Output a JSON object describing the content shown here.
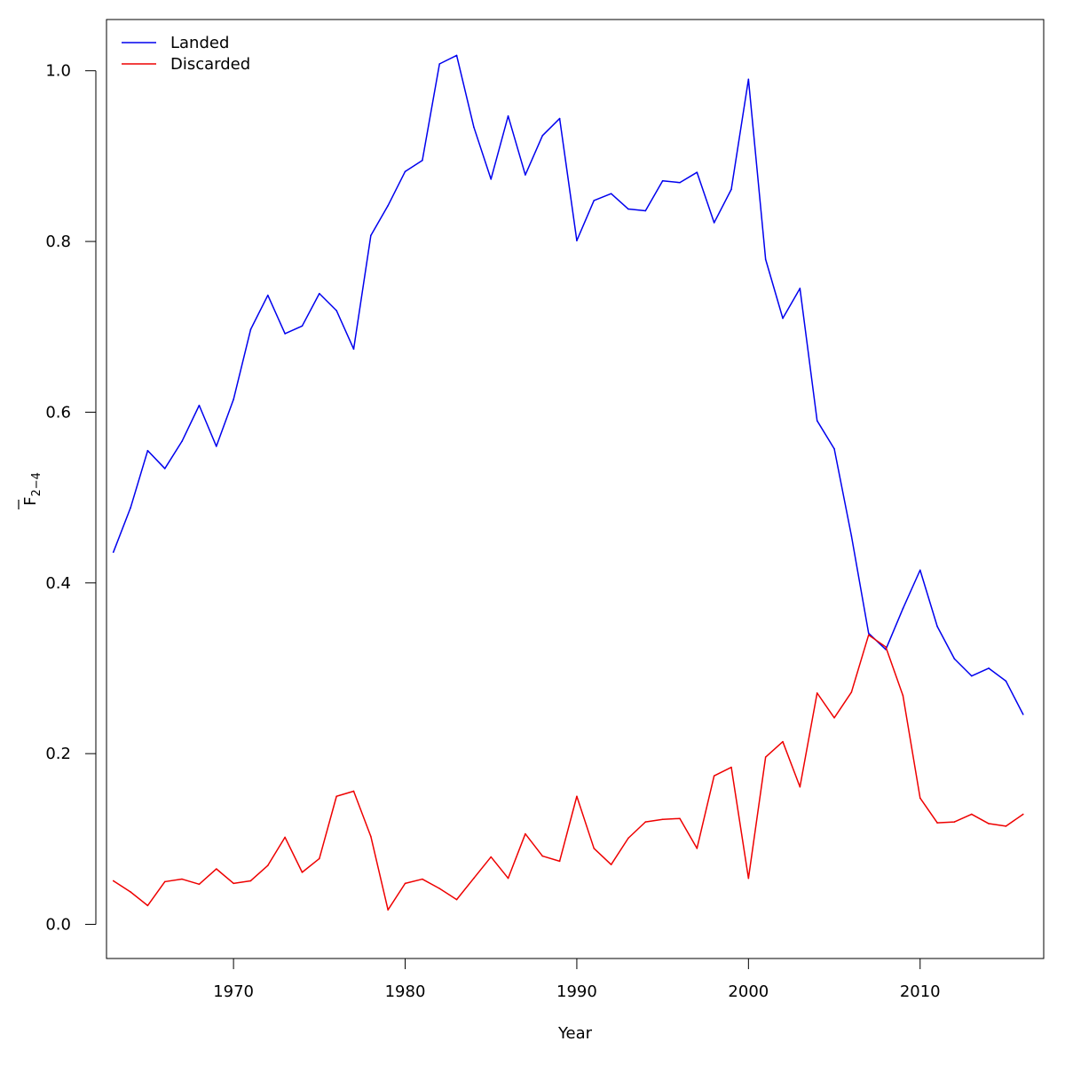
{
  "chart_data": {
    "type": "line",
    "xlabel": "Year",
    "ylabel": "F",
    "ylabel_sub": "2−4",
    "xlim": [
      1962.6,
      2017.2
    ],
    "ylim": [
      -0.04,
      1.06
    ],
    "x_ticks": [
      1970,
      1980,
      1990,
      2000,
      2010
    ],
    "y_ticks": [
      0.0,
      0.2,
      0.4,
      0.6,
      0.8,
      1.0
    ],
    "x_tick_labels": [
      "1970",
      "1980",
      "1990",
      "2000",
      "2010"
    ],
    "y_tick_labels": [
      "0.0",
      "0.2",
      "0.4",
      "0.6",
      "0.8",
      "1.0"
    ],
    "grid": false,
    "legend_position": "top-left",
    "x": [
      1963,
      1964,
      1965,
      1966,
      1967,
      1968,
      1969,
      1970,
      1971,
      1972,
      1973,
      1974,
      1975,
      1976,
      1977,
      1978,
      1979,
      1980,
      1981,
      1982,
      1983,
      1984,
      1985,
      1986,
      1987,
      1988,
      1989,
      1990,
      1991,
      1992,
      1993,
      1994,
      1995,
      1996,
      1997,
      1998,
      1999,
      2000,
      2001,
      2002,
      2003,
      2004,
      2005,
      2006,
      2007,
      2008,
      2009,
      2010,
      2011,
      2012,
      2013,
      2014,
      2015,
      2016
    ],
    "series": [
      {
        "name": "Landed",
        "color": "#0000ee",
        "values": [
          0.436,
          0.488,
          0.555,
          0.534,
          0.566,
          0.608,
          0.56,
          0.615,
          0.697,
          0.737,
          0.692,
          0.701,
          0.739,
          0.719,
          0.674,
          0.807,
          0.842,
          0.882,
          0.895,
          1.008,
          1.018,
          0.934,
          0.873,
          0.947,
          0.878,
          0.924,
          0.944,
          0.801,
          0.848,
          0.856,
          0.838,
          0.836,
          0.871,
          0.869,
          0.881,
          0.822,
          0.861,
          0.99,
          0.779,
          0.71,
          0.745,
          0.59,
          0.557,
          0.455,
          0.341,
          0.322,
          0.37,
          0.415,
          0.349,
          0.311,
          0.291,
          0.3,
          0.285,
          0.246
        ]
      },
      {
        "name": "Discarded",
        "color": "#ee0000",
        "values": [
          0.051,
          0.038,
          0.022,
          0.05,
          0.053,
          0.047,
          0.065,
          0.048,
          0.051,
          0.069,
          0.102,
          0.061,
          0.077,
          0.15,
          0.156,
          0.103,
          0.017,
          0.048,
          0.053,
          0.042,
          0.029,
          0.054,
          0.079,
          0.054,
          0.106,
          0.08,
          0.074,
          0.15,
          0.089,
          0.07,
          0.101,
          0.12,
          0.123,
          0.124,
          0.089,
          0.174,
          0.184,
          0.054,
          0.196,
          0.214,
          0.161,
          0.271,
          0.242,
          0.272,
          0.339,
          0.325,
          0.268,
          0.148,
          0.119,
          0.12,
          0.129,
          0.118,
          0.115,
          0.129
        ]
      }
    ]
  }
}
